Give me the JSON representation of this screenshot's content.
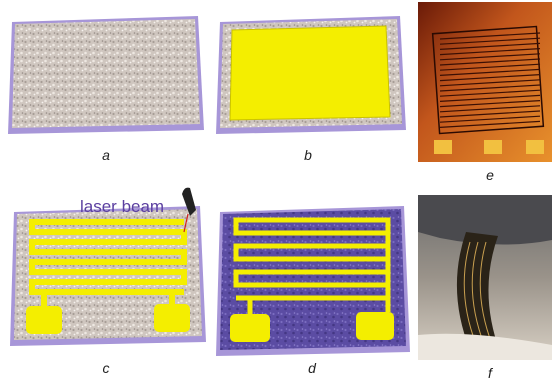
{
  "panels": {
    "a": "a",
    "b": "b",
    "c": "c",
    "d": "d",
    "e": "e",
    "f": "f"
  },
  "annotation": "laser beam"
}
